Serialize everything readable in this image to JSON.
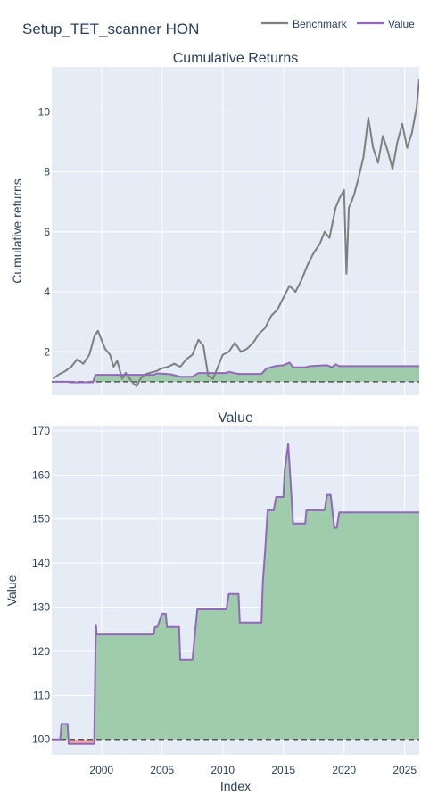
{
  "figure": {
    "title": "Setup_TET_scanner HON",
    "xlabel": "Index",
    "legend_placement": "top-right",
    "legend": [
      {
        "name": "Benchmark",
        "color": "#7f7f7f"
      },
      {
        "name": "Value",
        "color": "#9467bd"
      }
    ]
  },
  "colors": {
    "plot_bg": "#e5ecf6",
    "grid": "#ffffff",
    "text": "#2a3f5f",
    "positive_fill": "#9fccaa",
    "negative_fill": "#f4a6a6",
    "baseline": "#555555"
  },
  "chart_data": [
    {
      "type": "line",
      "title": "Cumulative Returns",
      "xlabel": "",
      "ylabel": "Cumulative returns",
      "xlim": [
        1995.9,
        2026.2
      ],
      "ylim": [
        0.55,
        11.5
      ],
      "x_ticks": [
        "2000",
        "2005",
        "2010",
        "2015",
        "2020",
        "2025"
      ],
      "y_ticks": [
        "2",
        "4",
        "6",
        "8",
        "10"
      ],
      "grid": true,
      "baseline": 1,
      "series": [
        {
          "name": "Benchmark",
          "color": "#7f7f7f",
          "x": [
            1996.0,
            1996.5,
            1997.0,
            1997.5,
            1998.0,
            1998.5,
            1999.0,
            1999.4,
            1999.7,
            2000.0,
            2000.3,
            2000.7,
            2001.0,
            2001.3,
            2001.7,
            2002.0,
            2002.5,
            2002.9,
            2003.2,
            2003.6,
            2004.0,
            2004.5,
            2005.0,
            2005.5,
            2006.0,
            2006.5,
            2007.0,
            2007.5,
            2008.0,
            2008.4,
            2008.8,
            2009.2,
            2009.6,
            2010.0,
            2010.5,
            2011.0,
            2011.5,
            2012.0,
            2012.5,
            2013.0,
            2013.5,
            2014.0,
            2014.5,
            2015.0,
            2015.5,
            2016.0,
            2016.5,
            2017.0,
            2017.5,
            2018.0,
            2018.4,
            2018.8,
            2019.0,
            2019.3,
            2019.6,
            2020.0,
            2020.2,
            2020.4,
            2020.8,
            2021.2,
            2021.6,
            2022.0,
            2022.4,
            2022.8,
            2023.2,
            2023.6,
            2024.0,
            2024.4,
            2024.8,
            2025.2,
            2025.6,
            2026.0,
            2026.2
          ],
          "y": [
            1.1,
            1.25,
            1.35,
            1.5,
            1.75,
            1.6,
            1.9,
            2.5,
            2.7,
            2.4,
            2.1,
            1.9,
            1.5,
            1.7,
            1.1,
            1.3,
            1.0,
            0.85,
            1.1,
            1.25,
            1.3,
            1.35,
            1.45,
            1.5,
            1.6,
            1.5,
            1.75,
            1.9,
            2.4,
            2.2,
            1.2,
            1.1,
            1.5,
            1.9,
            2.0,
            2.3,
            2.0,
            2.1,
            2.3,
            2.6,
            2.8,
            3.2,
            3.4,
            3.8,
            4.2,
            4.0,
            4.4,
            4.9,
            5.3,
            5.6,
            6.0,
            5.8,
            6.2,
            6.8,
            7.1,
            7.4,
            4.6,
            6.8,
            7.2,
            7.8,
            8.5,
            9.8,
            8.8,
            8.3,
            9.2,
            8.7,
            8.1,
            9.0,
            9.6,
            8.8,
            9.3,
            10.2,
            11.1
          ]
        },
        {
          "name": "Value",
          "color": "#9467bd",
          "x": [
            1996.0,
            1997.3,
            1997.4,
            1999.3,
            1999.5,
            2004.3,
            2004.6,
            2005.0,
            2005.7,
            2006.5,
            2007.5,
            2008.0,
            2010.3,
            2010.5,
            2011.3,
            2013.2,
            2013.6,
            2014.3,
            2015.0,
            2015.5,
            2015.8,
            2016.8,
            2017.2,
            2018.6,
            2019.0,
            2019.3,
            2019.6,
            2026.2
          ],
          "y": [
            1.0,
            1.0,
            0.98,
            0.98,
            1.23,
            1.23,
            1.28,
            1.27,
            1.25,
            1.17,
            1.17,
            1.29,
            1.29,
            1.33,
            1.26,
            1.26,
            1.44,
            1.52,
            1.55,
            1.64,
            1.48,
            1.48,
            1.52,
            1.55,
            1.48,
            1.58,
            1.52,
            1.52
          ]
        }
      ]
    },
    {
      "type": "area",
      "title": "Value",
      "xlabel": "Index",
      "ylabel": "Value",
      "xlim": [
        1995.9,
        2026.2
      ],
      "ylim": [
        96.5,
        171
      ],
      "x_ticks": [
        "2000",
        "2005",
        "2010",
        "2015",
        "2020",
        "2025"
      ],
      "y_ticks": [
        "100",
        "110",
        "120",
        "130",
        "140",
        "150",
        "160",
        "170"
      ],
      "grid": true,
      "baseline": 100,
      "series": [
        {
          "name": "Value",
          "color": "#9467bd",
          "x": [
            1996.0,
            1996.6,
            1996.7,
            1997.2,
            1997.3,
            1997.5,
            1999.4,
            1999.5,
            1999.55,
            1999.6,
            2004.3,
            2004.4,
            2004.6,
            2005.0,
            2005.3,
            2005.4,
            2006.4,
            2006.5,
            2007.5,
            2007.6,
            2007.9,
            2008.0,
            2010.3,
            2010.5,
            2011.3,
            2011.4,
            2013.2,
            2013.3,
            2013.5,
            2013.7,
            2014.2,
            2014.4,
            2015.0,
            2015.1,
            2015.4,
            2015.6,
            2015.8,
            2016.8,
            2016.9,
            2017.2,
            2018.4,
            2018.6,
            2018.9,
            2019.2,
            2019.4,
            2019.6,
            2020.5,
            2026.2
          ],
          "y": [
            100.0,
            100.0,
            103.5,
            103.5,
            99.0,
            99.0,
            99.0,
            120.0,
            126.0,
            123.8,
            123.8,
            125.5,
            125.5,
            128.5,
            128.5,
            125.5,
            125.5,
            118.0,
            118.0,
            121.0,
            129.5,
            129.5,
            129.5,
            133.0,
            133.0,
            126.5,
            126.5,
            135.5,
            143.0,
            152.0,
            152.0,
            155.0,
            155.0,
            161.0,
            167.0,
            158.0,
            149.0,
            149.0,
            152.0,
            152.0,
            152.0,
            155.5,
            155.5,
            148.0,
            148.0,
            151.5,
            151.5,
            151.5
          ]
        }
      ]
    }
  ]
}
